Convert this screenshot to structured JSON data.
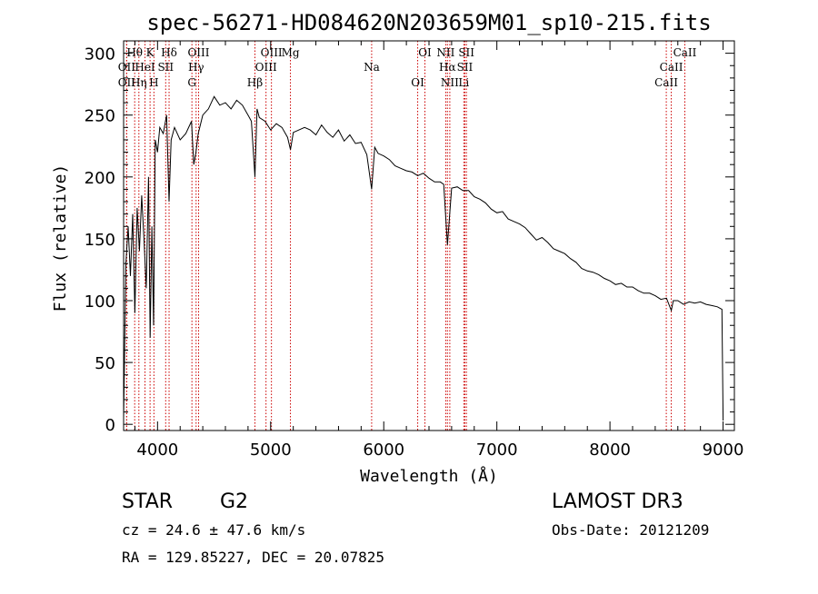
{
  "chart_data": {
    "type": "line",
    "title": "spec-56271-HD084620N203659M01_sp10-215.fits",
    "xlabel": "Wavelength (Å)",
    "ylabel": "Flux (relative)",
    "xlim": [
      3700,
      9100
    ],
    "ylim": [
      -5,
      310
    ],
    "xticks": [
      4000,
      5000,
      6000,
      7000,
      8000,
      9000
    ],
    "xtick_labels": [
      "4000",
      "5000",
      "6000",
      "7000",
      "8000",
      "9000"
    ],
    "yticks": [
      0,
      50,
      100,
      150,
      200,
      250,
      300
    ],
    "ytick_labels": [
      "0",
      "50",
      "100",
      "150",
      "200",
      "250",
      "300"
    ],
    "grid": false,
    "line_color": "#000000",
    "marker_color": "#cc0000",
    "series": [
      {
        "name": "flux",
        "x": [
          3700,
          3720,
          3740,
          3760,
          3780,
          3800,
          3820,
          3840,
          3860,
          3880,
          3900,
          3920,
          3935,
          3950,
          3965,
          3980,
          4000,
          4020,
          4050,
          4080,
          4102,
          4120,
          4150,
          4200,
          4250,
          4300,
          4320,
          4340,
          4360,
          4400,
          4450,
          4500,
          4550,
          4600,
          4650,
          4700,
          4750,
          4800,
          4830,
          4861,
          4880,
          4900,
          4950,
          5000,
          5050,
          5100,
          5150,
          5175,
          5200,
          5250,
          5300,
          5350,
          5400,
          5450,
          5500,
          5550,
          5600,
          5650,
          5700,
          5750,
          5800,
          5850,
          5893,
          5920,
          5950,
          6000,
          6050,
          6100,
          6150,
          6200,
          6250,
          6300,
          6350,
          6400,
          6450,
          6500,
          6530,
          6563,
          6600,
          6650,
          6700,
          6750,
          6800,
          6850,
          6900,
          6950,
          7000,
          7050,
          7100,
          7150,
          7200,
          7250,
          7300,
          7350,
          7400,
          7450,
          7500,
          7550,
          7600,
          7650,
          7700,
          7750,
          7800,
          7850,
          7900,
          7950,
          8000,
          8050,
          8100,
          8150,
          8200,
          8250,
          8300,
          8350,
          8400,
          8450,
          8500,
          8542,
          8560,
          8600,
          8650,
          8700,
          8750,
          8800,
          8850,
          8900,
          8950,
          8990,
          9000
        ],
        "values": [
          5,
          130,
          160,
          120,
          170,
          90,
          175,
          140,
          185,
          150,
          110,
          200,
          70,
          160,
          80,
          230,
          220,
          240,
          235,
          250,
          180,
          230,
          240,
          230,
          235,
          245,
          210,
          220,
          235,
          250,
          255,
          265,
          258,
          260,
          255,
          262,
          258,
          250,
          245,
          200,
          255,
          248,
          245,
          238,
          243,
          240,
          232,
          222,
          236,
          238,
          240,
          238,
          234,
          242,
          236,
          232,
          238,
          229,
          234,
          227,
          228,
          218,
          190,
          224,
          219,
          217,
          214,
          209,
          207,
          205,
          204,
          201,
          203,
          199,
          196,
          196,
          194,
          145,
          191,
          192,
          189,
          189,
          184,
          182,
          179,
          174,
          171,
          172,
          166,
          164,
          162,
          159,
          154,
          149,
          151,
          147,
          142,
          140,
          138,
          134,
          131,
          126,
          124,
          123,
          121,
          118,
          116,
          113,
          114,
          111,
          111,
          108,
          106,
          106,
          104,
          101,
          102,
          92,
          100,
          100,
          97,
          99,
          98,
          99,
          97,
          96,
          95,
          93,
          3
        ]
      }
    ],
    "spectral_lines": [
      {
        "label": "Hθ",
        "x": 3798
      },
      {
        "label": "OII",
        "x": 3727
      },
      {
        "label": "OII",
        "x": 3727
      },
      {
        "label": "K",
        "x": 3934
      },
      {
        "label": "HeI",
        "x": 3889
      },
      {
        "label": "Hη",
        "x": 3835
      },
      {
        "label": "Hδ",
        "x": 4102
      },
      {
        "label": "SII",
        "x": 4072
      },
      {
        "label": "H",
        "x": 3968
      },
      {
        "label": "OIII",
        "x": 4363
      },
      {
        "label": "Hγ",
        "x": 4341
      },
      {
        "label": "G",
        "x": 4304
      },
      {
        "label": "OIII",
        "x": 5007
      },
      {
        "label": "OIII",
        "x": 4959
      },
      {
        "label": "Hβ",
        "x": 4861
      },
      {
        "label": "Mg",
        "x": 5175
      },
      {
        "label": "Na",
        "x": 5893
      },
      {
        "label": "OI",
        "x": 6300
      },
      {
        "label": "OI",
        "x": 6364
      },
      {
        "label": "Hα",
        "x": 6563
      },
      {
        "label": "NII",
        "x": 6584
      },
      {
        "label": "NII",
        "x": 6548
      },
      {
        "label": "SII",
        "x": 6717
      },
      {
        "label": "Li",
        "x": 6708
      },
      {
        "label": "SII",
        "x": 6731
      },
      {
        "label": "CaII",
        "x": 8542
      },
      {
        "label": "CaII",
        "x": 8498
      },
      {
        "label": "CaII",
        "x": 8662
      }
    ]
  },
  "info": {
    "object_class": "STAR",
    "subclass": "G2",
    "survey": "LAMOST DR3",
    "redshift": "cz = 24.6 ± 47.6 km/s",
    "obs_date": "Obs-Date: 20121209",
    "coords": "RA = 129.85227, DEC =  20.07825"
  }
}
